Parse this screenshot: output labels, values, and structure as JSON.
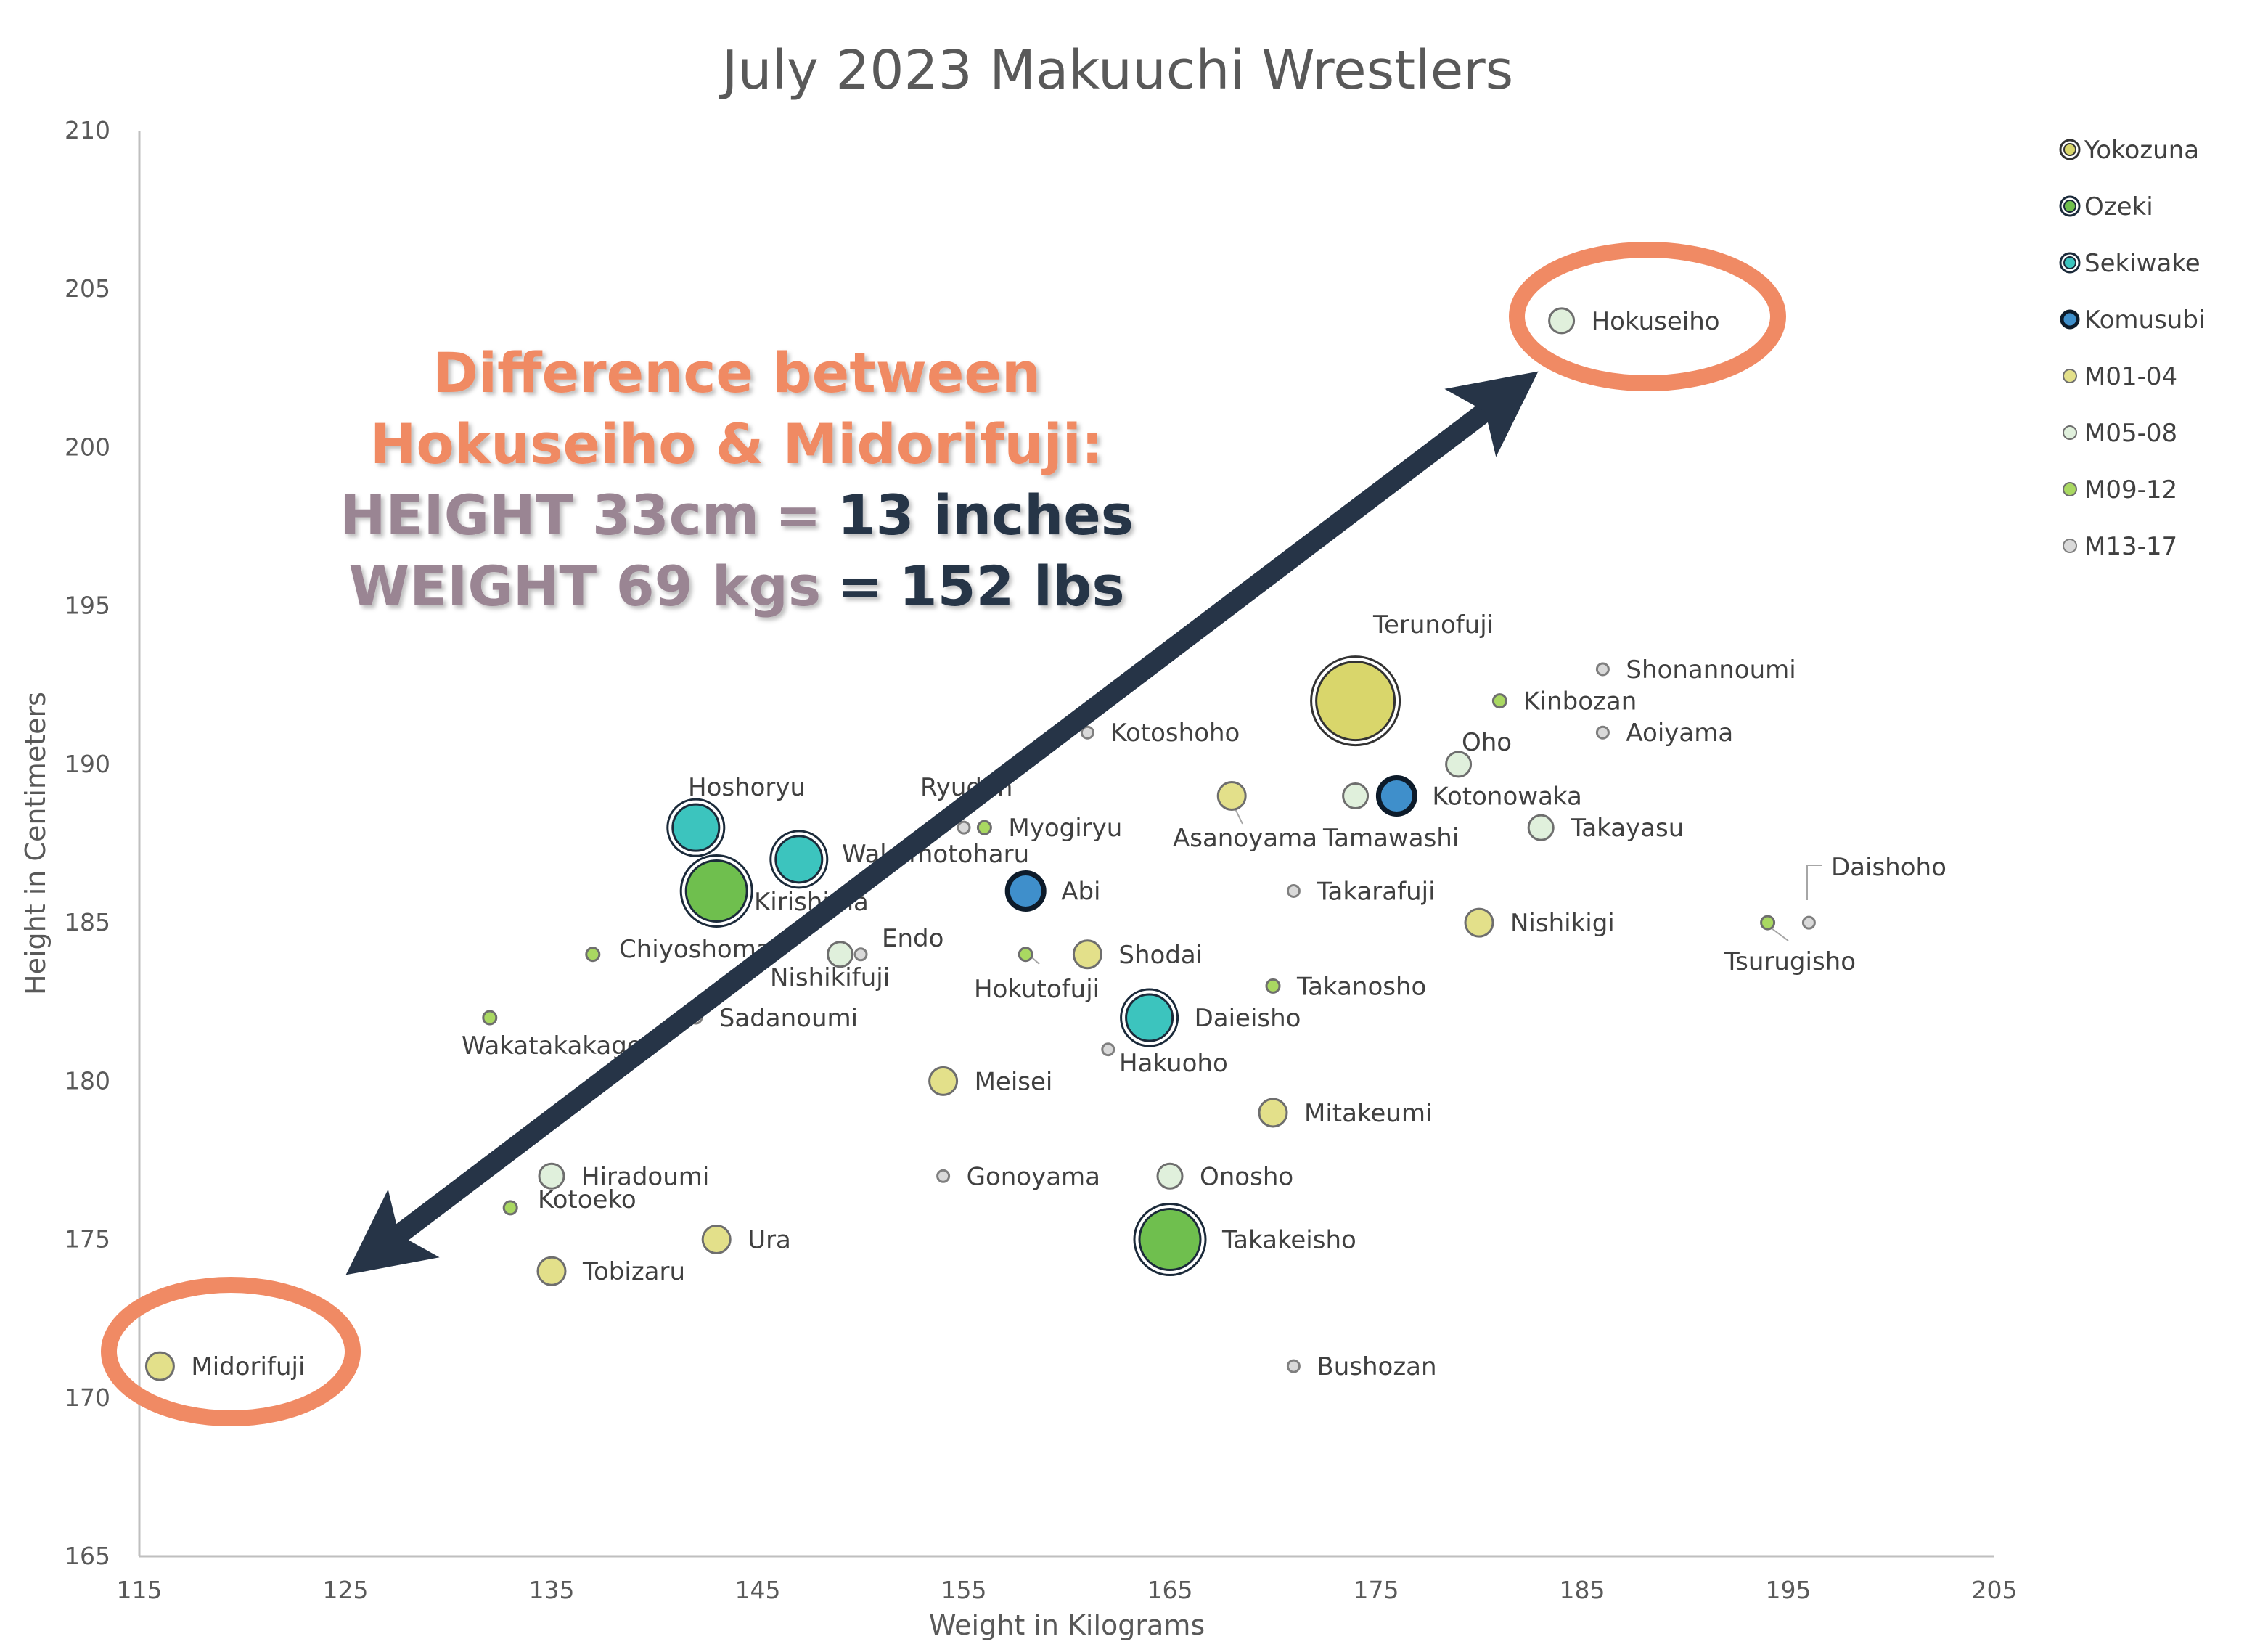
{
  "chart_data": {
    "type": "scatter",
    "title": "July 2023 Makuuchi Wrestlers",
    "xlabel": "Weight in Kilograms",
    "ylabel": "Height in Centimeters",
    "xlim": [
      115,
      205
    ],
    "ylim": [
      165,
      210
    ],
    "xticks": [
      115,
      125,
      135,
      145,
      155,
      165,
      175,
      185,
      195,
      205
    ],
    "yticks": [
      165,
      170,
      175,
      180,
      185,
      190,
      195,
      200,
      205,
      210
    ],
    "grid": false,
    "legend_position": "top-right",
    "categories": [
      {
        "name": "Yokozuna",
        "fill": "#D9D66B",
        "stroke": "#333333",
        "ring": true
      },
      {
        "name": "Ozeki",
        "fill": "#6FBF4E",
        "stroke": "#1B2A3A",
        "ring": true
      },
      {
        "name": "Sekiwake",
        "fill": "#3CC4BE",
        "stroke": "#1B2A3A",
        "ring": true
      },
      {
        "name": "Komusubi",
        "fill": "#3F8FCB",
        "stroke": "#0D1B2A",
        "ring": false
      },
      {
        "name": "M01-04",
        "fill": "#E3E08A",
        "stroke": "#6E6E6E",
        "ring": false
      },
      {
        "name": "M05-08",
        "fill": "#E0F0DC",
        "stroke": "#6E6E6E",
        "ring": false
      },
      {
        "name": "M09-12",
        "fill": "#A9D861",
        "stroke": "#6E6E6E",
        "ring": false
      },
      {
        "name": "M13-17",
        "fill": "#D9D9D9",
        "stroke": "#7F7F7F",
        "ring": false
      }
    ],
    "points": [
      {
        "name": "Hokuseiho",
        "category": "M05-08",
        "x": 184,
        "y": 204
      },
      {
        "name": "Midorifuji",
        "category": "M01-04",
        "x": 116,
        "y": 171
      },
      {
        "name": "Terunofuji",
        "category": "Yokozuna",
        "x": 174,
        "y": 192
      },
      {
        "name": "Shonannoumi",
        "category": "M13-17",
        "x": 186,
        "y": 193
      },
      {
        "name": "Kinbozan",
        "category": "M09-12",
        "x": 181,
        "y": 192
      },
      {
        "name": "Aoiyama",
        "category": "M13-17",
        "x": 186,
        "y": 191
      },
      {
        "name": "Kotoshoho",
        "category": "M13-17",
        "x": 161,
        "y": 191
      },
      {
        "name": "Oho",
        "category": "M05-08",
        "x": 179,
        "y": 190
      },
      {
        "name": "Kotonowaka",
        "category": "Komusubi",
        "x": 176,
        "y": 189
      },
      {
        "name": "Tamawashi",
        "category": "M05-08",
        "x": 174,
        "y": 189
      },
      {
        "name": "Asanoyama",
        "category": "M01-04",
        "x": 168,
        "y": 189
      },
      {
        "name": "Takayasu",
        "category": "M05-08",
        "x": 183,
        "y": 188
      },
      {
        "name": "Hoshoryu",
        "category": "Sekiwake",
        "x": 142,
        "y": 188
      },
      {
        "name": "Ryuden",
        "category": "M13-17",
        "x": 155,
        "y": 188
      },
      {
        "name": "Myogiryu",
        "category": "M09-12",
        "x": 156,
        "y": 188
      },
      {
        "name": "Wakamotoharu",
        "category": "Sekiwake",
        "x": 147,
        "y": 187
      },
      {
        "name": "Kirishima",
        "category": "Ozeki",
        "x": 143,
        "y": 186
      },
      {
        "name": "Abi",
        "category": "Komusubi",
        "x": 158,
        "y": 186
      },
      {
        "name": "Takarafuji",
        "category": "M13-17",
        "x": 171,
        "y": 186
      },
      {
        "name": "Daishoho",
        "category": "M13-17",
        "x": 196,
        "y": 185
      },
      {
        "name": "Tsurugisho",
        "category": "M09-12",
        "x": 194,
        "y": 185
      },
      {
        "name": "Nishikigi",
        "category": "M01-04",
        "x": 180,
        "y": 185
      },
      {
        "name": "Endo",
        "category": "M13-17",
        "x": 150,
        "y": 184
      },
      {
        "name": "Chiyoshoma",
        "category": "M09-12",
        "x": 137,
        "y": 184
      },
      {
        "name": "Nishikifuji",
        "category": "M05-08",
        "x": 149,
        "y": 184
      },
      {
        "name": "Shodai",
        "category": "M01-04",
        "x": 161,
        "y": 184
      },
      {
        "name": "Hokutofuji",
        "category": "M09-12",
        "x": 158,
        "y": 184
      },
      {
        "name": "Takanosho",
        "category": "M09-12",
        "x": 170,
        "y": 183
      },
      {
        "name": "Sadanoumi",
        "category": "M13-17",
        "x": 142,
        "y": 182
      },
      {
        "name": "Wakatakakage",
        "category": "M09-12",
        "x": 132,
        "y": 182
      },
      {
        "name": "Daieisho",
        "category": "Sekiwake",
        "x": 164,
        "y": 182
      },
      {
        "name": "Hakuoho",
        "category": "M13-17",
        "x": 162,
        "y": 181
      },
      {
        "name": "Meisei",
        "category": "M01-04",
        "x": 154,
        "y": 180
      },
      {
        "name": "Mitakeumi",
        "category": "M01-04",
        "x": 170,
        "y": 179
      },
      {
        "name": "Hiradoumi",
        "category": "M05-08",
        "x": 135,
        "y": 177
      },
      {
        "name": "Gonoyama",
        "category": "M13-17",
        "x": 154,
        "y": 177
      },
      {
        "name": "Onosho",
        "category": "M05-08",
        "x": 165,
        "y": 177
      },
      {
        "name": "Kotoeko",
        "category": "M09-12",
        "x": 133,
        "y": 176
      },
      {
        "name": "Ura",
        "category": "M01-04",
        "x": 143,
        "y": 175
      },
      {
        "name": "Takakeisho",
        "category": "Ozeki",
        "x": 165,
        "y": 175
      },
      {
        "name": "Tobizaru",
        "category": "M01-04",
        "x": 135,
        "y": 174
      },
      {
        "name": "Bushozan",
        "category": "M13-17",
        "x": 171,
        "y": 171
      }
    ],
    "annotation": {
      "line1": "Difference between",
      "line2": "Hokuseiho & Midorifuji:",
      "height_label": "HEIGHT 33cm",
      "height_eq": "=",
      "height_value": "13 inches",
      "weight_label": "WEIGHT 69 kgs",
      "weight_eq": "=",
      "weight_value": "152 lbs"
    },
    "highlight_color": "#F08A64",
    "arrow_color": "#263447"
  }
}
